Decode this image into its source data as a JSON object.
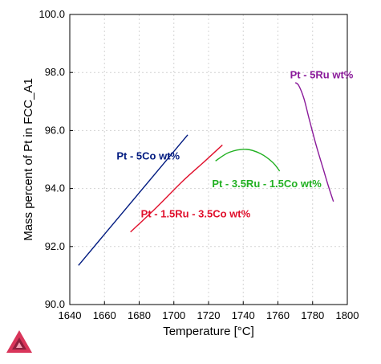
{
  "chart_data": {
    "type": "line",
    "title": "",
    "xlabel": "Temperature [°C]",
    "ylabel": "Mass percent of Pt in FCC_A1",
    "xlim": [
      1640,
      1800
    ],
    "ylim": [
      90.0,
      100.0
    ],
    "xticks": [
      1640,
      1660,
      1680,
      1700,
      1720,
      1740,
      1760,
      1780,
      1800
    ],
    "xtick_labels": [
      "1640",
      "1660",
      "1680",
      "1700",
      "1720",
      "1740",
      "1760",
      "1780",
      "1800"
    ],
    "yticks": [
      90,
      92,
      94,
      96,
      98,
      100
    ],
    "ytick_labels": [
      "90.0",
      "92.0",
      "94.0",
      "96.0",
      "98.0",
      "100.0"
    ],
    "grid": true,
    "legend": "none",
    "series": [
      {
        "name": "Pt - 5Co wt%",
        "color": "#001a80",
        "x": [
          1645,
          1708
        ],
        "y": [
          91.35,
          95.85
        ]
      },
      {
        "name": "Pt - 1.5Ru - 3.5Co wt%",
        "color": "#e0102c",
        "x": [
          1675,
          1690,
          1705,
          1718,
          1728
        ],
        "y": [
          92.5,
          93.35,
          94.25,
          94.95,
          95.5
        ]
      },
      {
        "name": "Pt - 3.5Ru - 1.5Co wt%",
        "color": "#22b022",
        "x": [
          1724,
          1732,
          1742,
          1750,
          1757,
          1761
        ],
        "y": [
          94.95,
          95.25,
          95.35,
          95.2,
          94.9,
          94.6
        ]
      },
      {
        "name": "Pt - 5Ru wt%",
        "color": "#8a1a9a",
        "x": [
          1770,
          1772,
          1775,
          1778,
          1782,
          1786,
          1789,
          1792
        ],
        "y": [
          97.65,
          97.55,
          97.1,
          96.4,
          95.5,
          94.7,
          94.1,
          93.55
        ]
      }
    ],
    "annotations": [
      {
        "text": "Pt - 5Co wt%",
        "x": 1667,
        "y": 95.0,
        "color": "#001a80"
      },
      {
        "text": "Pt - 1.5Ru - 3.5Co wt%",
        "x": 1681,
        "y": 93.0,
        "color": "#e0102c"
      },
      {
        "text": "Pt - 3.5Ru - 1.5Co wt%",
        "x": 1722,
        "y": 94.05,
        "color": "#22b022"
      },
      {
        "text": "Pt - 5Ru wt%",
        "x": 1767,
        "y": 97.8,
        "color": "#8a1a9a"
      }
    ]
  },
  "logo": {
    "name": "thermo-calc-logo-icon",
    "colors": [
      "#d9355a",
      "#8e1f3d",
      "#f2a1b4"
    ]
  }
}
